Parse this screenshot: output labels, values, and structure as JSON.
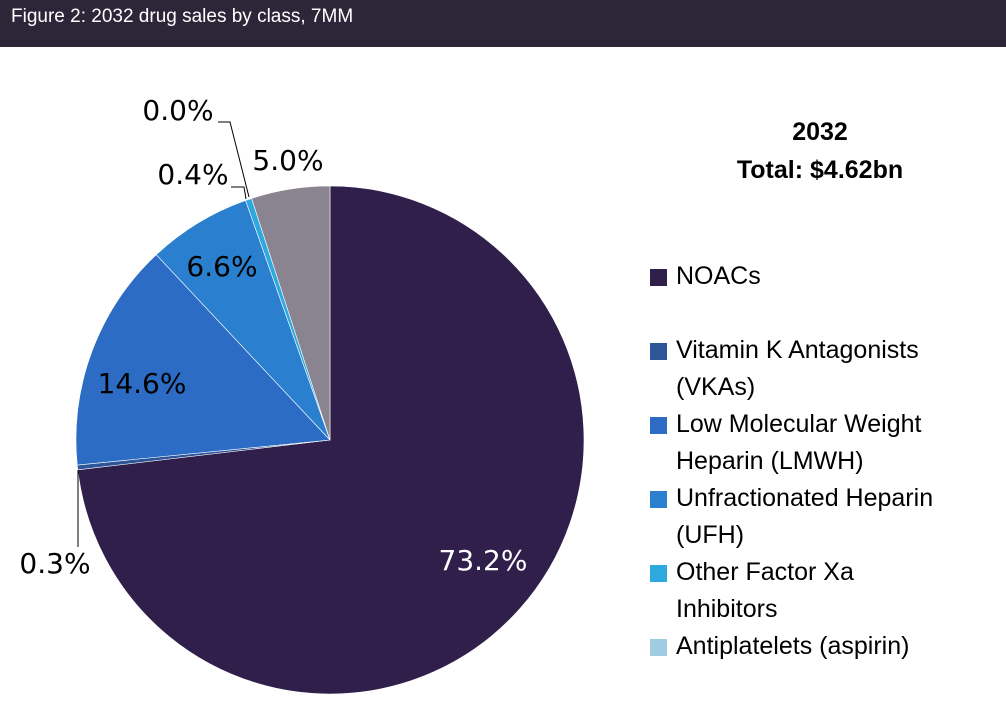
{
  "header": {
    "title": "Figure 2: 2032 drug sales by class, 7MM"
  },
  "summary": {
    "year": "2032",
    "total": "Total: $4.62bn"
  },
  "chart_data": {
    "type": "pie",
    "title": "Figure 2: 2032 drug sales by class, 7MM",
    "subtitle": "2032 Total: $4.62bn",
    "start_angle": "12 o'clock, clockwise",
    "legend_position": "right",
    "slices": [
      {
        "name": "NOACs",
        "value": 73.2,
        "label": "73.2%",
        "color": "#2f1f4a",
        "in_legend": true
      },
      {
        "name": "Vitamin K Antagonists (VKAs)",
        "value": 0.3,
        "label": "0.3%",
        "color": "#2e5597",
        "in_legend": true
      },
      {
        "name": "Low Molecular Weight Heparin (LMWH)",
        "value": 14.6,
        "label": "14.6%",
        "color": "#2c6cc4",
        "in_legend": true
      },
      {
        "name": "Unfractionated Heparin (UFH)",
        "value": 6.6,
        "label": "6.6%",
        "color": "#2a80cf",
        "in_legend": true
      },
      {
        "name": "Other Factor Xa Inhibitors",
        "value": 0.4,
        "label": "0.4%",
        "color": "#2ea9e0",
        "in_legend": true
      },
      {
        "name": "Antiplatelets (aspirin)",
        "value": 0.0,
        "label": "0.0%",
        "color": "#a1cbe0",
        "in_legend": true
      },
      {
        "name": "",
        "value": 5.0,
        "label": "5.0%",
        "color": "#8a8490",
        "in_legend": false
      }
    ]
  },
  "legend": [
    {
      "label": "NOACs",
      "color": "#2f1f4a"
    },
    {
      "label": "Vitamin K Antagonists (VKAs)",
      "color": "#2e5597"
    },
    {
      "label": "Low Molecular Weight Heparin (LMWH)",
      "color": "#2c6cc4"
    },
    {
      "label": "Unfractionated Heparin (UFH)",
      "color": "#2a80cf"
    },
    {
      "label": "Other Factor Xa Inhibitors",
      "color": "#2ea9e0"
    },
    {
      "label": "Antiplatelets (aspirin)",
      "color": "#a1cbe0"
    }
  ]
}
